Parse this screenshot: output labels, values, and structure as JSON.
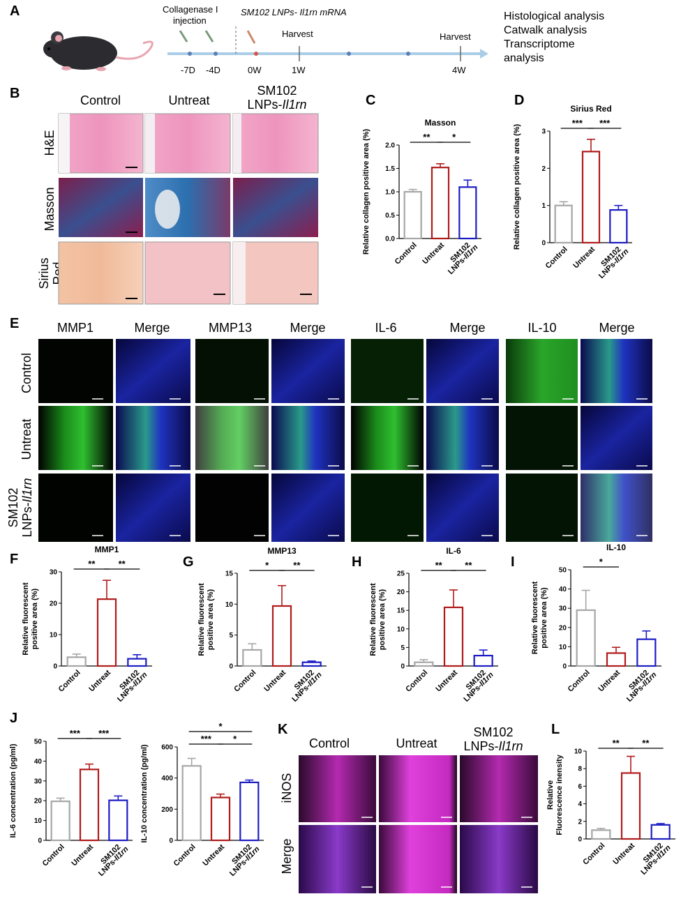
{
  "panel_letters": [
    "A",
    "B",
    "C",
    "D",
    "E",
    "F",
    "G",
    "H",
    "I",
    "J",
    "K",
    "L"
  ],
  "timeline": {
    "injection_label": [
      "Collagenase I",
      "injection"
    ],
    "treatment_label": "SM102 LNPs- Il1rn mRNA",
    "harvest_label": "Harvest",
    "ticks": [
      "-7D",
      "-4D",
      "0W",
      "1W",
      "4W"
    ],
    "analyses": [
      "Histological analysis",
      "Catwalk analysis",
      "Transcriptome",
      "analysis"
    ]
  },
  "histology": {
    "columns": [
      "Control",
      "Untreat",
      "SM102",
      "LNPs-",
      "Il1rn"
    ],
    "rows": [
      "H&E",
      "Masson",
      "Sirius",
      "Red"
    ]
  },
  "immuno": {
    "headers": [
      "MMP1",
      "Merge",
      "MMP13",
      "Merge",
      "IL-6",
      "Merge",
      "IL-10",
      "Merge"
    ],
    "rows": [
      "Control",
      "Untreat",
      "SM102",
      "LNPs-",
      "Il1rn"
    ]
  },
  "inos": {
    "columns": [
      "Control",
      "Untreat",
      "SM102",
      "LNPs-",
      "Il1rn"
    ],
    "rows": [
      "iNOS",
      "Merge"
    ]
  },
  "group_labels": [
    "Control",
    "Untreat",
    "SM102",
    "LNPs-",
    "Il1rn"
  ],
  "colors": {
    "control": "#a6a6a6",
    "untreat": "#b01a1a",
    "sm102": "#1c1cc4",
    "timeline": "#a9cde6"
  },
  "chart_data": [
    {
      "id": "C",
      "type": "bar",
      "title": "Masson",
      "ylabel": "Relative collagen positive area (%)",
      "categories": [
        "Control",
        "Untreat",
        "SM102 LNPs-Il1rn"
      ],
      "values": [
        1.0,
        1.52,
        1.1
      ],
      "errors": [
        0.05,
        0.08,
        0.15
      ],
      "ylim": [
        0,
        2.0
      ],
      "yticks": [
        "0.0",
        "0.5",
        "1.0",
        "1.5",
        "2.0"
      ],
      "significance": [
        {
          "from": 0,
          "to": 1,
          "label": "**"
        },
        {
          "from": 1,
          "to": 2,
          "label": "*"
        }
      ]
    },
    {
      "id": "D",
      "type": "bar",
      "title": "Sirius Red",
      "ylabel": "Relative collagen positive area (%)",
      "categories": [
        "Control",
        "Untreat",
        "SM102 LNPs-Il1rn"
      ],
      "values": [
        1.0,
        2.45,
        0.88
      ],
      "errors": [
        0.1,
        0.33,
        0.12
      ],
      "ylim": [
        0,
        3
      ],
      "yticks": [
        "0",
        "1",
        "2",
        "3"
      ],
      "significance": [
        {
          "from": 0,
          "to": 1,
          "label": "***"
        },
        {
          "from": 1,
          "to": 2,
          "label": "***"
        }
      ]
    },
    {
      "id": "F",
      "type": "bar",
      "title": "MMP1",
      "ylabel": "Relative fluorescent positive area (%)",
      "categories": [
        "Control",
        "Untreat",
        "SM102 LNPs-Il1rn"
      ],
      "values": [
        2.8,
        21.3,
        2.3
      ],
      "errors": [
        1.0,
        6.0,
        1.3
      ],
      "ylim": [
        0,
        30
      ],
      "yticks": [
        "0",
        "10",
        "20",
        "30"
      ],
      "significance": [
        {
          "from": 0,
          "to": 1,
          "label": "**"
        },
        {
          "from": 1,
          "to": 2,
          "label": "**"
        }
      ]
    },
    {
      "id": "G",
      "type": "bar",
      "title": "MMP13",
      "ylabel": "Relative fluorescent positive area (%)",
      "categories": [
        "Control",
        "Untreat",
        "SM102 LNPs-Il1rn"
      ],
      "values": [
        2.6,
        9.7,
        0.6
      ],
      "errors": [
        1.0,
        3.3,
        0.2
      ],
      "ylim": [
        0,
        15
      ],
      "yticks": [
        "0",
        "5",
        "10",
        "15"
      ],
      "significance": [
        {
          "from": 0,
          "to": 1,
          "label": "*"
        },
        {
          "from": 1,
          "to": 2,
          "label": "**"
        }
      ]
    },
    {
      "id": "H",
      "type": "bar",
      "title": "IL-6",
      "ylabel": "Relative fluorescent positive area (%)",
      "categories": [
        "Control",
        "Untreat",
        "SM102 LNPs-Il1rn"
      ],
      "values": [
        1.0,
        15.8,
        2.8
      ],
      "errors": [
        0.7,
        4.7,
        1.5
      ],
      "ylim": [
        0,
        25
      ],
      "yticks": [
        "0",
        "5",
        "10",
        "15",
        "20",
        "25"
      ],
      "significance": [
        {
          "from": 0,
          "to": 1,
          "label": "**"
        },
        {
          "from": 1,
          "to": 2,
          "label": "**"
        }
      ]
    },
    {
      "id": "I",
      "type": "bar",
      "title": "IL-10",
      "ylabel": "Relative fluorescent positive area (%)",
      "categories": [
        "Control",
        "Untreat",
        "SM102 LNPs-Il1rn"
      ],
      "values": [
        29.0,
        6.7,
        13.9
      ],
      "errors": [
        10.3,
        3.0,
        4.3
      ],
      "ylim": [
        0,
        50
      ],
      "yticks": [
        "0",
        "10",
        "20",
        "30",
        "40",
        "50"
      ],
      "significance": [
        {
          "from": 0,
          "to": 1,
          "label": "*"
        }
      ]
    },
    {
      "id": "J1",
      "type": "bar",
      "title": "",
      "ylabel": "IL-6 concentration (pg/ml)",
      "categories": [
        "Control",
        "Untreat",
        "SM102 LNPs-Il1rn"
      ],
      "values": [
        19.7,
        35.8,
        20.2
      ],
      "errors": [
        1.6,
        2.7,
        2.2
      ],
      "ylim": [
        0,
        50
      ],
      "yticks": [
        "0",
        "10",
        "20",
        "30",
        "40",
        "50"
      ],
      "significance": [
        {
          "from": 0,
          "to": 1,
          "label": "***"
        },
        {
          "from": 1,
          "to": 2,
          "label": "***"
        }
      ]
    },
    {
      "id": "J2",
      "type": "bar",
      "title": "",
      "ylabel": "IL-10 concentration (pg/ml)",
      "categories": [
        "Control",
        "Untreat",
        "SM102 LNPs-Il1rn"
      ],
      "values": [
        478,
        275,
        372
      ],
      "errors": [
        48,
        22,
        15
      ],
      "ylim": [
        0,
        600
      ],
      "yticks": [
        "0",
        "200",
        "400",
        "600"
      ],
      "significance": [
        {
          "from": 0,
          "to": 1,
          "label": "***"
        },
        {
          "from": 1,
          "to": 2,
          "label": "*"
        },
        {
          "from": 0,
          "to": 2,
          "label": "*"
        }
      ]
    },
    {
      "id": "L",
      "type": "bar",
      "title": "",
      "ylabel": "Relative Fluorescence inensity",
      "categories": [
        "Control",
        "Untreat",
        "SM102 LNPs-Il1rn"
      ],
      "values": [
        1.0,
        7.5,
        1.6
      ],
      "errors": [
        0.2,
        1.9,
        0.15
      ],
      "ylim": [
        0,
        10
      ],
      "yticks": [
        "0",
        "2",
        "4",
        "6",
        "8",
        "10"
      ],
      "significance": [
        {
          "from": 0,
          "to": 1,
          "label": "**"
        },
        {
          "from": 1,
          "to": 2,
          "label": "**"
        }
      ]
    }
  ]
}
